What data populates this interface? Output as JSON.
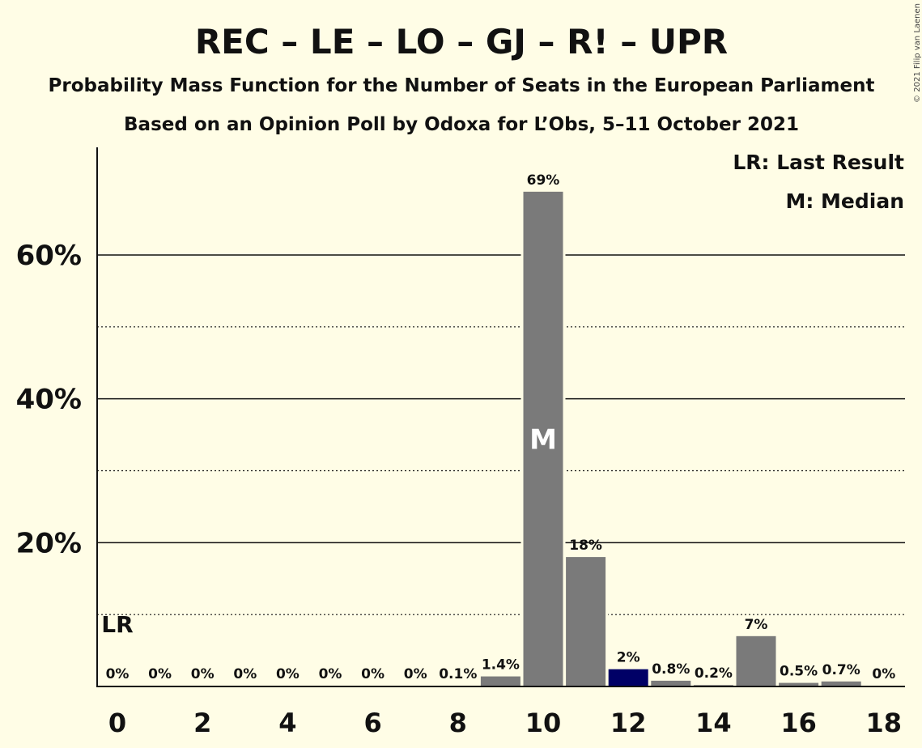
{
  "copyright": "© 2021 Filip van Laenen",
  "chart_data": {
    "type": "bar",
    "title": "REC – LE – LO – GJ – R! – UPR",
    "subtitle": "Probability Mass Function for the Number of Seats in the European Parliament",
    "subtitle2": "Based on an Opinion Poll by Odoxa for L’Obs, 5–11 October 2021",
    "legend": {
      "placement": "top-right",
      "last_result": "LR: Last Result",
      "median": "M: Median"
    },
    "categories": [
      0,
      1,
      2,
      3,
      4,
      5,
      6,
      7,
      8,
      9,
      10,
      11,
      12,
      13,
      14,
      15,
      16,
      17,
      18
    ],
    "values": [
      0,
      0,
      0,
      0,
      0,
      0,
      0,
      0,
      0.1,
      1.4,
      68.8,
      18.0,
      2.4,
      0.8,
      0.2,
      7.0,
      0.5,
      0.7,
      0
    ],
    "value_labels": [
      "0%",
      "0%",
      "0%",
      "0%",
      "0%",
      "0%",
      "0%",
      "0%",
      "0.1%",
      "1.4%",
      "69%",
      "18%",
      "2%",
      "0.8%",
      "0.2%",
      "7%",
      "0.5%",
      "0.7%",
      "0%"
    ],
    "x_tick_labels": [
      "0",
      "2",
      "4",
      "6",
      "8",
      "10",
      "12",
      "14",
      "16",
      "18"
    ],
    "x_tick_values": [
      0,
      2,
      4,
      6,
      8,
      10,
      12,
      14,
      16,
      18
    ],
    "y_tick_labels": [
      "20%",
      "40%",
      "60%"
    ],
    "y_tick_values": [
      20,
      40,
      60
    ],
    "y_minor_gridlines": [
      10,
      30,
      50
    ],
    "ylim": [
      0,
      75
    ],
    "grid": true,
    "median_seat": 10,
    "median_label": "M",
    "last_result_seat": 0,
    "last_result_label": "LR",
    "colors": {
      "bar": "#7a7a7a",
      "highlight_bar": "#000066",
      "background": "#fffde6",
      "grid": "#111111"
    },
    "highlight_seat": 12
  }
}
